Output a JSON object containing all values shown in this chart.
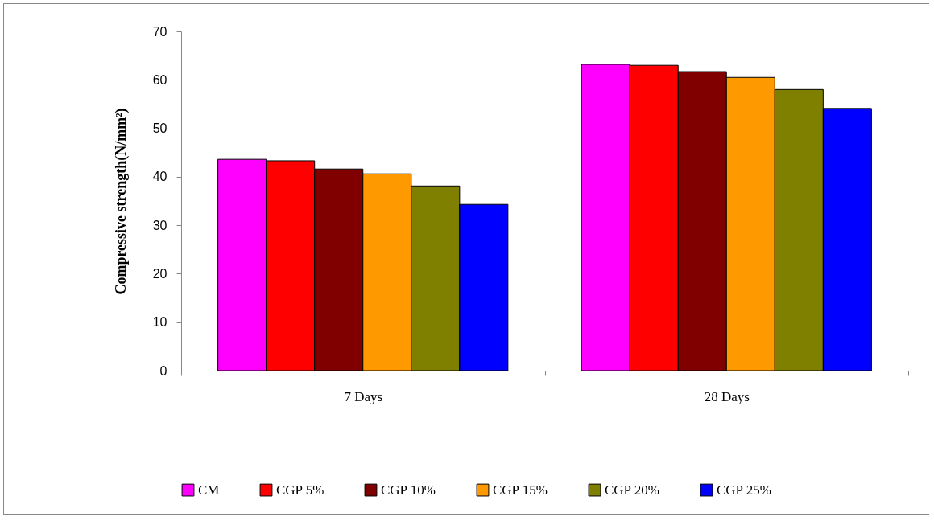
{
  "chart_data": {
    "type": "bar",
    "ylabel": "Compressive strength(N/mm²)",
    "categories": [
      "7 Days",
      "28 Days"
    ],
    "series": [
      {
        "name": "CM",
        "color": "#ff00ff",
        "values": [
          43.6,
          63.2
        ]
      },
      {
        "name": "CGP 5%",
        "color": "#ff0000",
        "values": [
          43.3,
          63.0
        ]
      },
      {
        "name": "CGP 10%",
        "color": "#800000",
        "values": [
          41.6,
          61.7
        ]
      },
      {
        "name": "CGP 15%",
        "color": "#ff9900",
        "values": [
          40.6,
          60.5
        ]
      },
      {
        "name": "CGP 20%",
        "color": "#808000",
        "values": [
          38.1,
          58.0
        ]
      },
      {
        "name": "CGP 25%",
        "color": "#0000ff",
        "values": [
          34.3,
          54.1
        ]
      }
    ],
    "ylim": [
      0,
      70
    ],
    "yticks": [
      0,
      10,
      20,
      30,
      40,
      50,
      60,
      70
    ],
    "grid": false,
    "legend": "bottom"
  }
}
